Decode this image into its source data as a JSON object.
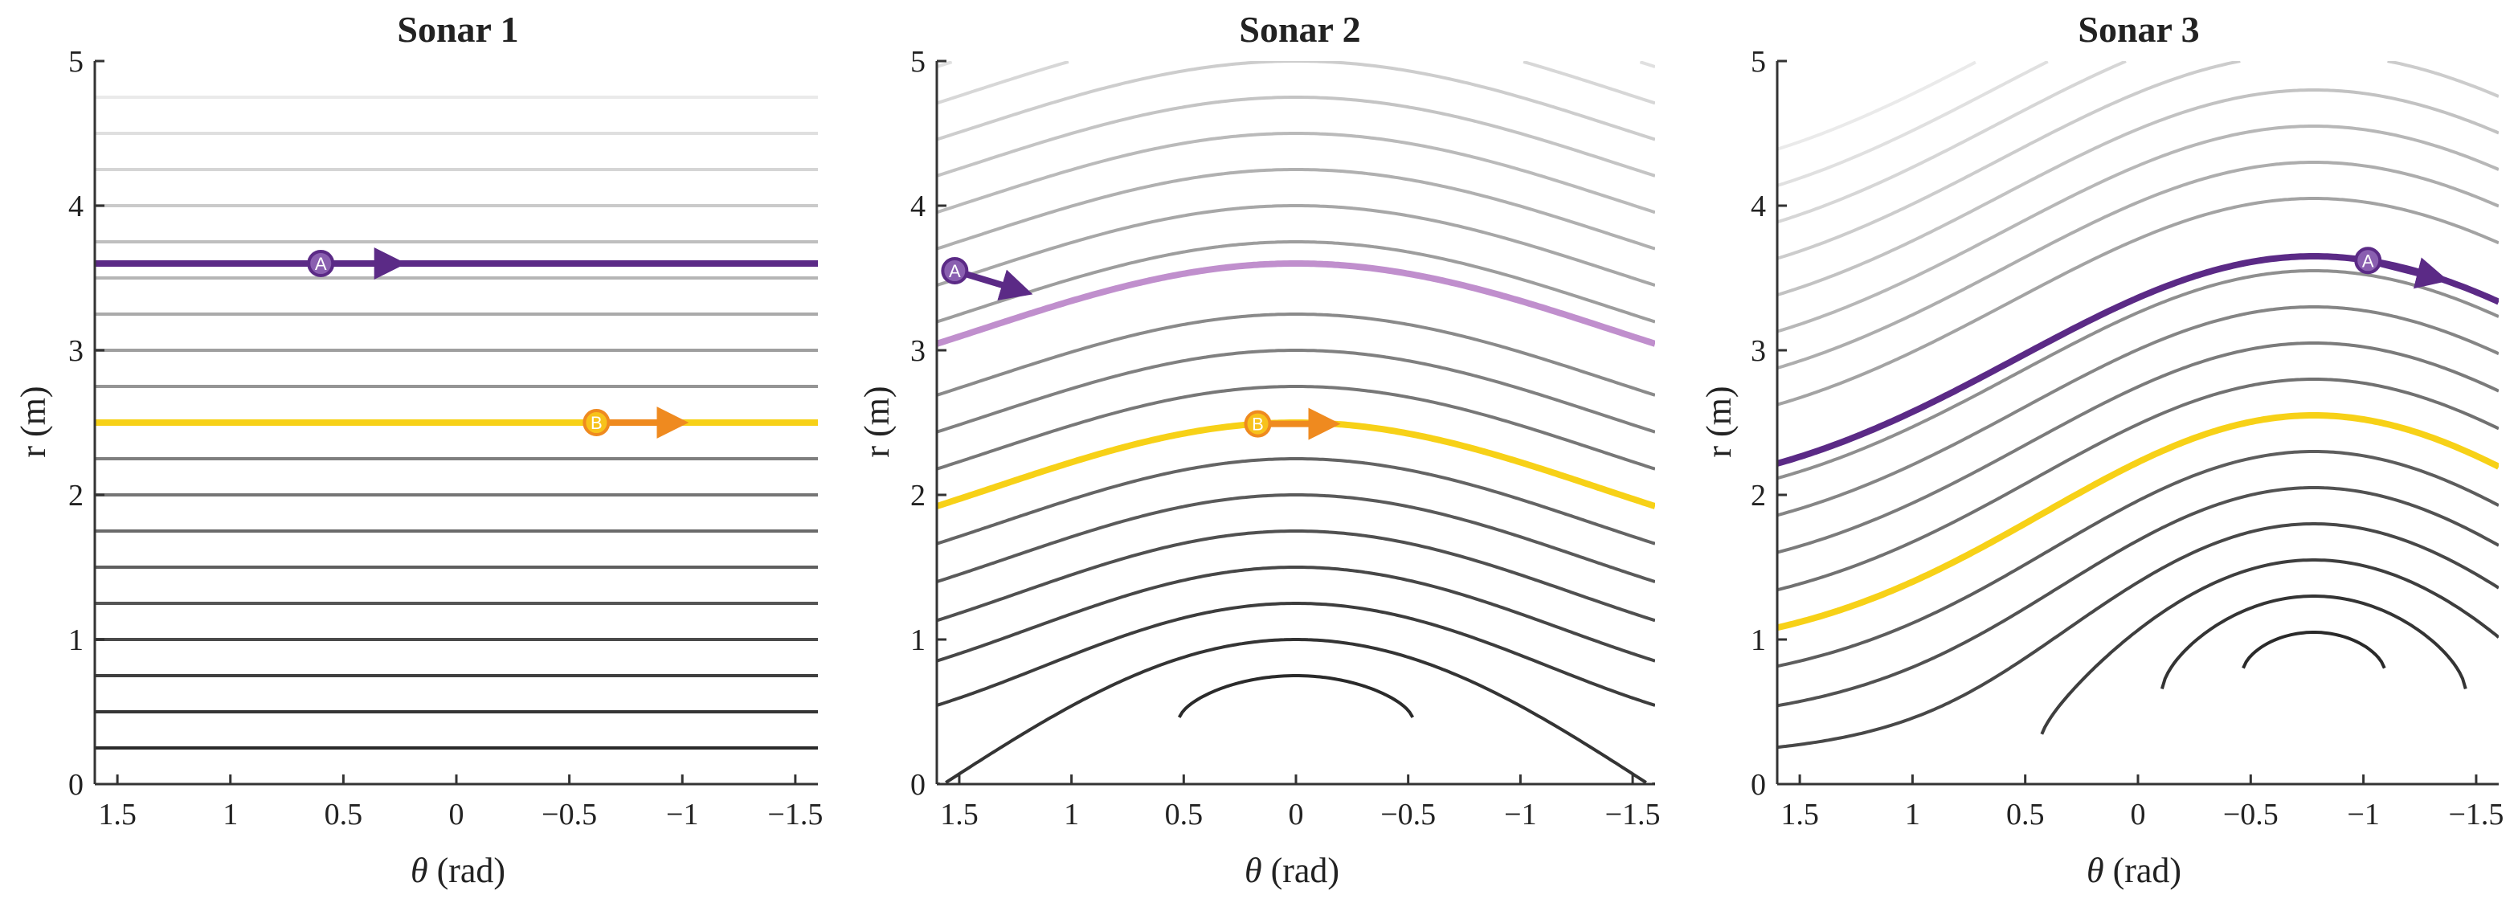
{
  "chart_data": [
    {
      "type": "line",
      "title": "Sonar 1",
      "xlabel_symbol": "θ",
      "xlabel_unit": " (rad)",
      "ylabel": "r (m)",
      "xlim": [
        1.6,
        -1.6
      ],
      "ylim": [
        0,
        5
      ],
      "xticks": [
        1.5,
        1,
        0.5,
        0,
        -0.5,
        -1,
        -1.5
      ],
      "xtick_labels": [
        "1.5",
        "1",
        "0.5",
        "0",
        "−0.5",
        "−1",
        "−1.5"
      ],
      "yticks": [
        0,
        1,
        2,
        3,
        4,
        5
      ],
      "ytick_labels": [
        "0",
        "1",
        "2",
        "3",
        "4",
        "5"
      ],
      "model": {
        "kind": "constant",
        "sensor_r": 0,
        "sensor_theta": 0
      },
      "contour_levels": [
        0.25,
        0.5,
        0.75,
        1.0,
        1.25,
        1.5,
        1.75,
        2.0,
        2.25,
        2.75,
        3.0,
        3.25,
        3.5,
        3.75,
        4.0,
        4.25,
        4.5,
        4.75
      ],
      "highlighted": [
        {
          "name": "A",
          "level": 3.6,
          "color": "#5b2a86"
        },
        {
          "name": "B",
          "level": 2.5,
          "color": "#f7d117"
        }
      ],
      "markers": [
        {
          "label": "A",
          "theta": 0.6,
          "arrow_to_theta": 0.25,
          "color": "#5b2a86",
          "fill": "#8a5fb0",
          "on": "A"
        },
        {
          "label": "B",
          "theta": -0.62,
          "arrow_to_theta": -1.0,
          "color": "#ef8a1f",
          "fill": "#f7c21b",
          "on": "B"
        }
      ]
    },
    {
      "type": "line",
      "title": "Sonar 2",
      "xlabel_symbol": "θ",
      "xlabel_unit": " (rad)",
      "ylabel": "r (m)",
      "xlim": [
        1.6,
        -1.6
      ],
      "ylim": [
        0,
        5
      ],
      "xticks": [
        1.5,
        1,
        0.5,
        0,
        -0.5,
        -1,
        -1.5
      ],
      "xtick_labels": [
        "1.5",
        "1",
        "0.5",
        "0",
        "−0.5",
        "−1",
        "−1.5"
      ],
      "yticks": [
        0,
        1,
        2,
        3,
        4,
        5
      ],
      "ytick_labels": [
        "0",
        "1",
        "2",
        "3",
        "4",
        "5"
      ],
      "model": {
        "kind": "offset",
        "sensor_r": 0.5,
        "sensor_theta": 0
      },
      "contour_levels": [
        0.25,
        0.5,
        0.75,
        1.0,
        1.25,
        1.5,
        1.75,
        2.25,
        2.5,
        2.75,
        3.25,
        3.5,
        3.75,
        4.0,
        4.25,
        4.5,
        4.75,
        5.0,
        5.25
      ],
      "highlighted": [
        {
          "name": "A",
          "level": 3.1,
          "color": "#c08fcd"
        },
        {
          "name": "B",
          "level": 2.0,
          "color": "#f7d117"
        }
      ],
      "markers": [
        {
          "label": "A",
          "theta": 1.52,
          "arrow_to_theta": 1.2,
          "color": "#5b2a86",
          "fill": "#8a5fb0",
          "on_r": 3.55,
          "arrow_to_r": 3.4
        },
        {
          "label": "B",
          "theta": 0.17,
          "arrow_to_theta": -0.17,
          "color": "#ef8a1f",
          "fill": "#f7c21b",
          "on": "B"
        }
      ]
    },
    {
      "type": "line",
      "title": "Sonar 3",
      "xlabel_symbol": "θ",
      "xlabel_unit": " (rad)",
      "ylabel": "r (m)",
      "xlim": [
        1.6,
        -1.6
      ],
      "ylim": [
        0,
        5
      ],
      "xticks": [
        1.5,
        1,
        0.5,
        0,
        -0.5,
        -1,
        -1.5
      ],
      "xtick_labels": [
        "1.5",
        "1",
        "0.5",
        "0",
        "−0.5",
        "−1",
        "−1.5"
      ],
      "yticks": [
        0,
        1,
        2,
        3,
        4,
        5
      ],
      "ytick_labels": [
        "0",
        "1",
        "2",
        "3",
        "4",
        "5"
      ],
      "model": {
        "kind": "offset",
        "sensor_r": 0.8,
        "sensor_theta": -0.78
      },
      "contour_levels": [
        0.25,
        0.5,
        0.75,
        1.0,
        1.25,
        1.5,
        1.75,
        2.0,
        2.25,
        2.5,
        2.75,
        3.25,
        3.5,
        3.75,
        4.0,
        4.25,
        4.5,
        4.75,
        5.0
      ],
      "highlighted": [
        {
          "name": "A",
          "level": 2.85,
          "color": "#5b2a86"
        },
        {
          "name": "B",
          "level": 1.75,
          "color": "#f7d117"
        }
      ],
      "markers": [
        {
          "label": "A",
          "theta": -1.02,
          "arrow_to_theta": -1.35,
          "color": "#5b2a86",
          "fill": "#8a5fb0",
          "on": "A"
        }
      ]
    }
  ]
}
